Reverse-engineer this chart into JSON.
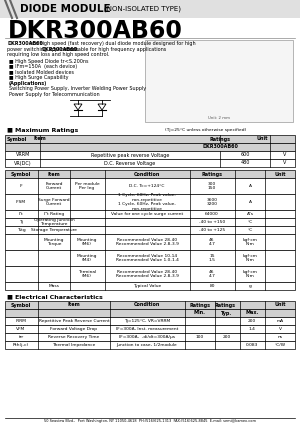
{
  "title_main": "DIODE MODULE",
  "title_sub": "(NON-ISOLATED TYPE)",
  "title_part": "DKR300AB60",
  "bullets": [
    "■ High Speed Diode tr<S.200ns",
    "■ IFm=150A  (each device)",
    "■ Isolated Molded devices",
    "■ High Surge Capability"
  ],
  "applications_label": "(Applications)",
  "applications": [
    "Switching Power Supply, Inverter Welding Power Supply",
    "Power Supply for Telecommunication"
  ],
  "max_ratings_title": "Maximum Ratings",
  "max_ratings_note": "(Tj=25°C unless otherwise specified)",
  "max_ratings_rows": [
    [
      "VRRM",
      "Repetitive peak reverse Voltage",
      "600",
      "V"
    ],
    [
      "VR(DC)",
      "D.C. Reverse Voltage",
      "480",
      "V"
    ]
  ],
  "elec_title": "Electrical Characteristics",
  "elec_rows": [
    [
      "IRRM",
      "Repetitive Peak Reverse Current",
      "Tj=125°C, VR=VRRM",
      "",
      "",
      "200",
      "mA"
    ],
    [
      "VFM",
      "Forward Voltage Drop",
      "IF=300A, Inst. measurement",
      "",
      "",
      "1.4",
      "V"
    ],
    [
      "trr",
      "Reverse Recovery Time",
      "IF=300A,  -di/dt=300A/μs",
      "100",
      "200",
      "",
      "ns"
    ],
    [
      "Rth(j-c)",
      "Thermal Impedance",
      "Junction to case, 1/2module",
      "",
      "",
      "0.083",
      "°C/W"
    ]
  ],
  "footer": "50 Seaview Blvd.,  Port Washington, NY 11050-4618  PH:(516)625-1313  FAX:(516)625-8845  E-mail: semi@kamex.com",
  "bg_color": "#ffffff"
}
